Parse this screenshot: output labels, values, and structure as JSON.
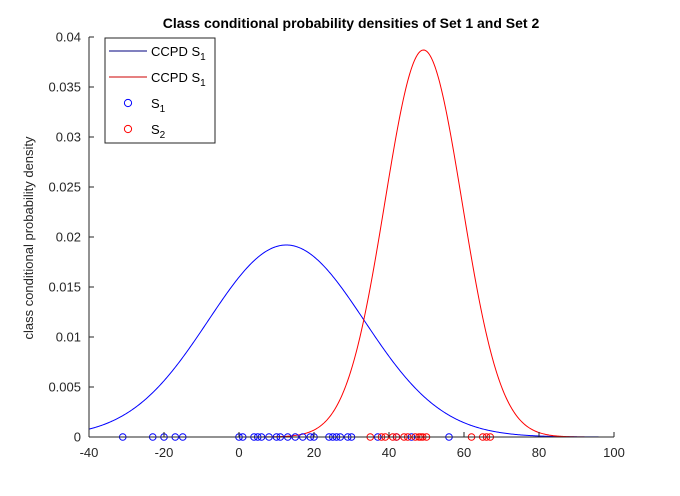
{
  "chart_data": {
    "type": "line",
    "title": "Class conditional probability densities of Set 1 and Set 2",
    "xlabel": "",
    "ylabel": "class conditional probability density",
    "xlim": [
      -40,
      100
    ],
    "ylim": [
      0,
      0.04
    ],
    "x_ticks": [
      -40,
      -20,
      0,
      20,
      40,
      60,
      80,
      100
    ],
    "x_tick_labels": [
      "-40",
      "-20",
      "0",
      "20",
      "40",
      "60",
      "80",
      "100"
    ],
    "y_ticks": [
      0,
      0.005,
      0.01,
      0.015,
      0.02,
      0.025,
      0.03,
      0.035,
      0.04
    ],
    "y_tick_labels": [
      "0",
      "0.005",
      "0.01",
      "0.015",
      "0.02",
      "0.025",
      "0.03",
      "0.035",
      "0.04"
    ],
    "grid": false,
    "legend_placement": "top-left",
    "series": [
      {
        "name": "CCPD S",
        "name_sub": "1",
        "kind": "line",
        "color": "#0000ff",
        "legend_color": "#00007f",
        "mean": 12.6,
        "std": 20.8,
        "peak": 0.0192
      },
      {
        "name": "CCPD S",
        "name_sub": "1",
        "kind": "line",
        "color": "#ff0000",
        "legend_color": "#cc0000",
        "mean": 49.2,
        "std": 10.3,
        "peak": 0.0387
      },
      {
        "name": "S",
        "name_sub": "1",
        "kind": "scatter",
        "color": "#0000ff",
        "marker": "circle",
        "x": [
          -31,
          -23,
          -20,
          -17,
          -15,
          0,
          1,
          4,
          5,
          6,
          8,
          10,
          11,
          13,
          15,
          17,
          19,
          20,
          24,
          25,
          26,
          27,
          29,
          30,
          37,
          42,
          46,
          56
        ],
        "y": [
          0,
          0,
          0,
          0,
          0,
          0,
          0,
          0,
          0,
          0,
          0,
          0,
          0,
          0,
          0,
          0,
          0,
          0,
          0,
          0,
          0,
          0,
          0,
          0,
          0,
          0,
          0,
          0
        ]
      },
      {
        "name": "S",
        "name_sub": "2",
        "kind": "scatter",
        "color": "#ff0000",
        "marker": "circle",
        "x": [
          35,
          38,
          39,
          41,
          42,
          44,
          45,
          47,
          48,
          48.5,
          49,
          50,
          62,
          65,
          66,
          67
        ],
        "y": [
          0,
          0,
          0,
          0,
          0,
          0,
          0,
          0,
          0,
          0,
          0,
          0,
          0,
          0,
          0,
          0
        ]
      }
    ]
  }
}
